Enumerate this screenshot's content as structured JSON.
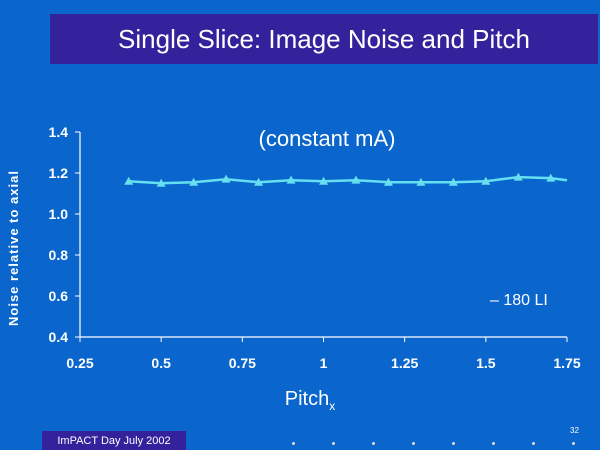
{
  "slide": {
    "title": "Single Slice: Image Noise and Pitch",
    "footer": "ImPACT Day July 2002",
    "page_number": "32",
    "dot_count": 8
  },
  "chart_data": {
    "type": "line",
    "title": "(constant mA)",
    "xlabel": "Pitch",
    "xlabel_sub": "x",
    "ylabel": "Noise relative to axial",
    "xlim": [
      0.25,
      1.75
    ],
    "ylim": [
      0.4,
      1.4
    ],
    "x_ticks": [
      "0.25",
      "0.5",
      "0.75",
      "1",
      "1.25",
      "1.5",
      "1.75"
    ],
    "y_ticks": [
      "1.4",
      "1.2",
      "1.0",
      "0.8",
      "0.6",
      "0.4"
    ],
    "series": [
      {
        "name": "180 LI",
        "legend_label": "– 180 LI",
        "color": "#66e0f0",
        "marker": "triangle",
        "x": [
          0.4,
          0.5,
          0.6,
          0.7,
          0.8,
          0.9,
          1.0,
          1.1,
          1.2,
          1.3,
          1.4,
          1.5,
          1.6,
          1.7,
          1.75
        ],
        "y": [
          1.16,
          1.15,
          1.155,
          1.17,
          1.155,
          1.165,
          1.16,
          1.165,
          1.155,
          1.155,
          1.155,
          1.16,
          1.18,
          1.175,
          1.165
        ]
      }
    ],
    "colors": {
      "axis": "#ffffff",
      "background": "#0a66cc",
      "title_bar": "#33229c"
    }
  }
}
